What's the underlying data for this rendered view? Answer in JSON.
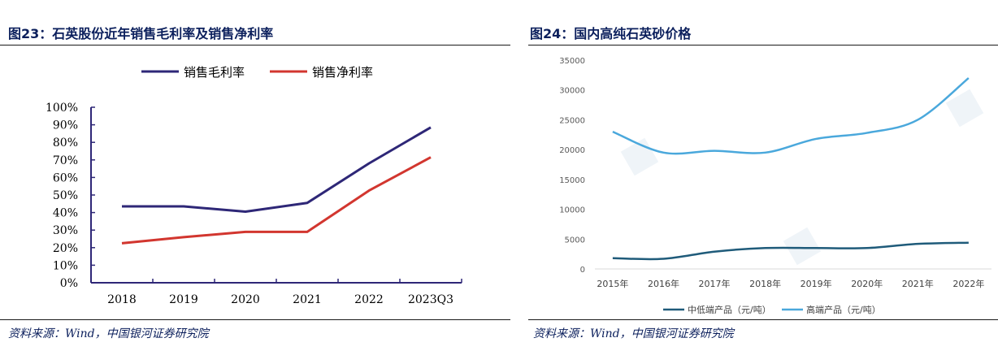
{
  "left": {
    "title": "图23：石英股份近年销售毛利率及销售净利率",
    "source": "资料来源：Wind，中国银河证券研究院"
  },
  "right": {
    "title": "图24：国内高纯石英砂价格",
    "source": "资料来源：Wind，中国银河证券研究院"
  },
  "colors": {
    "title": "#0b1f5c",
    "gross": "#2e2777",
    "net": "#d2362f",
    "low": "#1f5b7a",
    "high": "#4aa8dc"
  },
  "chart_data": [
    {
      "type": "line",
      "title": "",
      "categories": [
        "2018",
        "2019",
        "2020",
        "2021",
        "2022",
        "2023Q3"
      ],
      "yticks": [
        "0%",
        "10%",
        "20%",
        "30%",
        "40%",
        "50%",
        "60%",
        "70%",
        "80%",
        "90%",
        "100%"
      ],
      "ylim": [
        0,
        100
      ],
      "legend_position": "top",
      "series": [
        {
          "name": "销售毛利率",
          "color": "#2e2777",
          "values": [
            43.5,
            43.5,
            40.5,
            45.5,
            68,
            88.5
          ]
        },
        {
          "name": "销售净利率",
          "color": "#d2362f",
          "values": [
            22.5,
            26,
            29,
            29,
            52.5,
            71.5
          ]
        }
      ]
    },
    {
      "type": "line",
      "title": "",
      "categories": [
        "2015年",
        "2016年",
        "2017年",
        "2018年",
        "2019年",
        "2020年",
        "2021年",
        "2022年"
      ],
      "yticks": [
        "0",
        "5000",
        "10000",
        "15000",
        "20000",
        "25000",
        "30000",
        "35000"
      ],
      "ylim": [
        0,
        35000
      ],
      "legend_position": "bottom",
      "series": [
        {
          "name": "中低端产品（元/吨）",
          "color": "#1f5b7a",
          "values": [
            1800,
            1700,
            2900,
            3500,
            3500,
            3500,
            4200,
            4400
          ]
        },
        {
          "name": "高端产品（元/吨）",
          "color": "#4aa8dc",
          "values": [
            23000,
            19500,
            19800,
            19500,
            21800,
            22800,
            25000,
            32000
          ]
        }
      ]
    }
  ]
}
